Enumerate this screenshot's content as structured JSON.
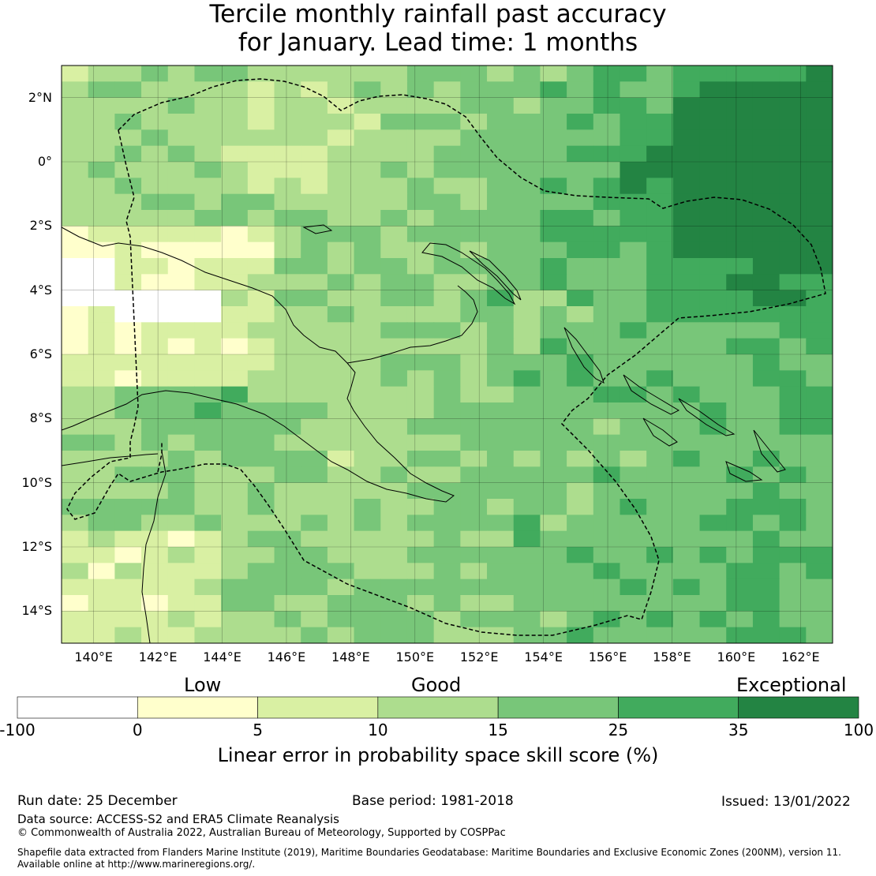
{
  "title": {
    "line1": "Tercile monthly rainfall past accuracy",
    "line2": "for January. Lead time: 1 months"
  },
  "map": {
    "lat_labels": [
      "2°N",
      "0°",
      "2°S",
      "4°S",
      "6°S",
      "8°S",
      "10°S",
      "12°S",
      "14°S"
    ],
    "lon_labels": [
      "140°E",
      "142°E",
      "144°E",
      "146°E",
      "148°E",
      "150°E",
      "152°E",
      "154°E",
      "156°E",
      "158°E",
      "160°E",
      "162°E"
    ],
    "lon_range": [
      139,
      163
    ],
    "lat_range": [
      -15,
      3
    ]
  },
  "colorbar": {
    "category_labels": [
      "Low",
      "Good",
      "Exceptional"
    ],
    "ticks": [
      "-100",
      "0",
      "5",
      "10",
      "15",
      "25",
      "35",
      "100"
    ],
    "colors": [
      "#ffffff",
      "#ffffcc",
      "#d9f0a3",
      "#addd8e",
      "#78c679",
      "#41ab5d",
      "#238443"
    ],
    "title": "Linear error in probability space skill score (%)"
  },
  "footer": {
    "run_date": "Run date: 25 December",
    "base_period": "Base period: 1981-2018",
    "issued": "Issued: 13/01/2022",
    "data_source": "Data source: ACCESS-S2 and ERA5 Climate Reanalysis",
    "copyright": "© Commonwealth of Australia 2022, Australian Bureau of Meteorology, Supported by COSPPac",
    "shapefile_line1": "Shapefile data extracted from Flanders Marine Institute (2019), Maritime Boundaries Geodatabase: Maritime Boundaries and Exclusive Economic Zones (200NM), version 11.",
    "shapefile_line2": "Available online at http://www.marineregions.org/."
  }
}
